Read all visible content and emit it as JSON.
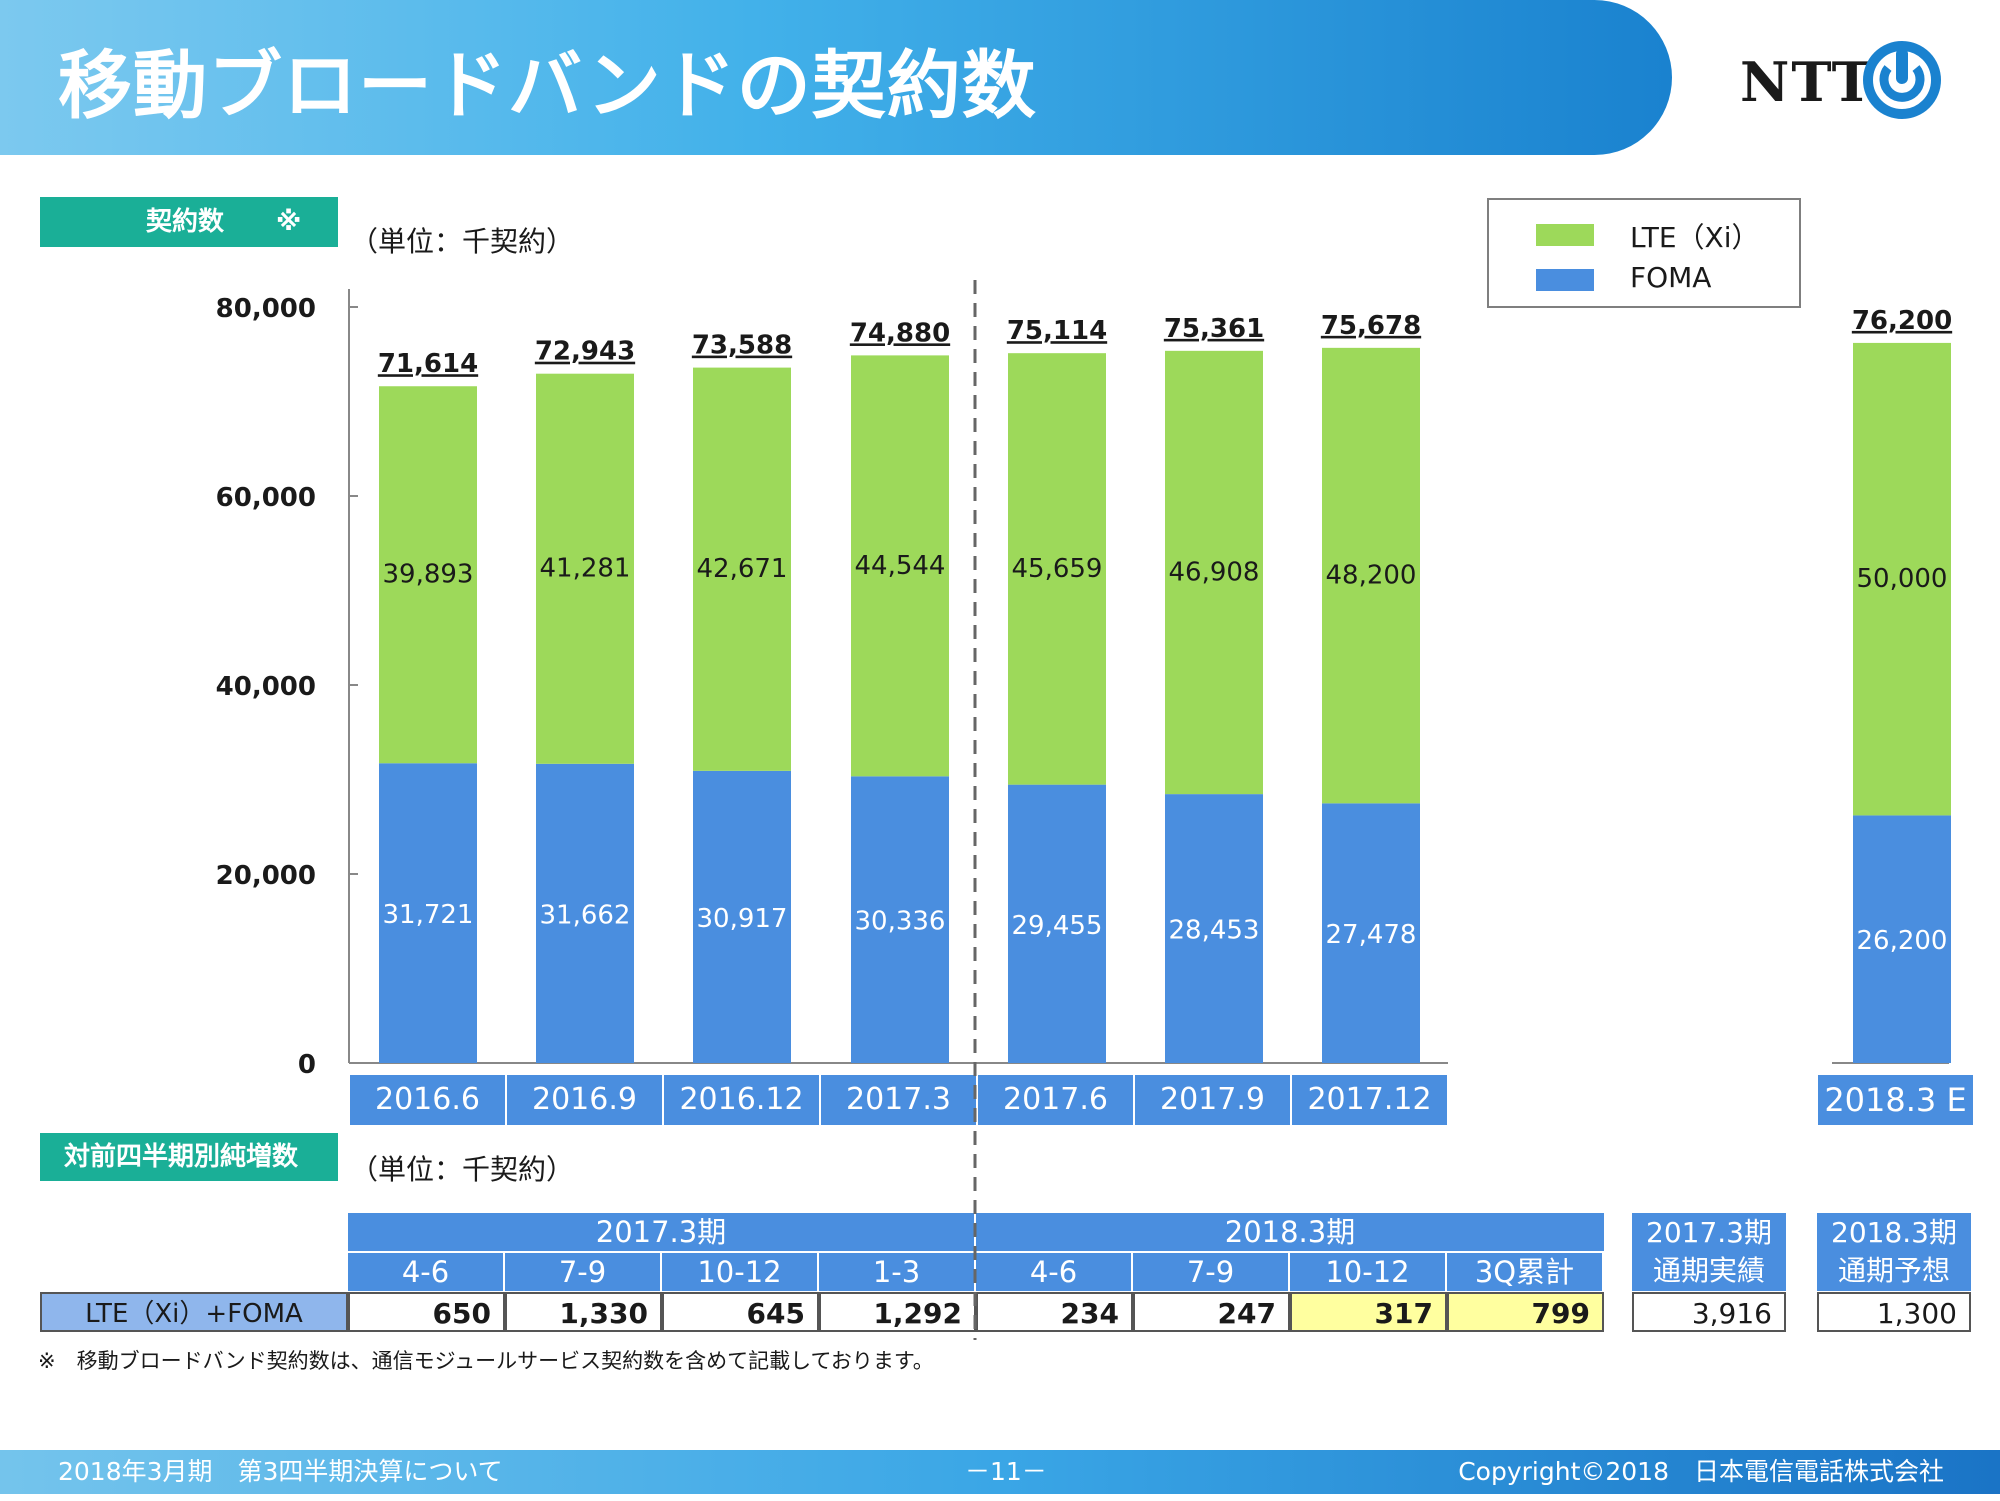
{
  "header": {
    "title": "移動ブロードバンドの契約数",
    "logo_text": "NTT"
  },
  "colors": {
    "lte": "#9dd95a",
    "foma": "#4a8edf",
    "teal": "#1aaf97",
    "highlight": "#ffff9f"
  },
  "sections": {
    "contracts_label": "契約数　　※",
    "contracts_unit": "（単位：千契約）",
    "net_adds_label": "対前四半期別純増数",
    "net_adds_unit": "（単位：千契約）"
  },
  "legend": {
    "lte": "LTE（Xi）",
    "foma": "FOMA"
  },
  "chart_data": {
    "type": "bar",
    "stacked": true,
    "categories": [
      "2016.6",
      "2016.9",
      "2016.12",
      "2017.3",
      "2017.6",
      "2017.9",
      "2017.12",
      "2018.3 E"
    ],
    "series": [
      {
        "name": "FOMA",
        "values": [
          31721,
          31662,
          30917,
          30336,
          29455,
          28453,
          27478,
          26200
        ],
        "labels": [
          "31,721",
          "31,662",
          "30,917",
          "30,336",
          "29,455",
          "28,453",
          "27,478",
          "26,200"
        ]
      },
      {
        "name": "LTE（Xi）",
        "values": [
          39893,
          41281,
          42671,
          44544,
          45659,
          46908,
          48200,
          50000
        ],
        "labels": [
          "39,893",
          "41,281",
          "42,671",
          "44,544",
          "45,659",
          "46,908",
          "48,200",
          "50,000"
        ]
      }
    ],
    "totals": [
      71614,
      72943,
      73588,
      74880,
      75114,
      75361,
      75678,
      76200
    ],
    "total_labels": [
      "71,614",
      "72,943",
      "73,588",
      "74,880",
      "75,114",
      "75,361",
      "75,678",
      "76,200"
    ],
    "yticks": [
      "0",
      "20,000",
      "40,000",
      "60,000",
      "80,000"
    ],
    "ylim": [
      0,
      80000
    ],
    "legend_position": "top-right"
  },
  "table": {
    "period_headers": [
      "2017.3期",
      "2018.3期"
    ],
    "quarter_headers": [
      "4-6",
      "7-9",
      "10-12",
      "1-3",
      "4-6",
      "7-9",
      "10-12",
      "3Q累計"
    ],
    "row_label": "LTE（Xi）+FOMA",
    "values": [
      "650",
      "1,330",
      "645",
      "1,292",
      "234",
      "247",
      "317",
      "799"
    ],
    "summary": [
      {
        "line1": "2017.3期",
        "line2": "通期実績",
        "value": "3,916"
      },
      {
        "line1": "2018.3期",
        "line2": "通期予想",
        "value": "1,300"
      }
    ]
  },
  "footnote": "※　移動ブロードバンド契約数は、通信モジュールサービス契約数を含めて記載しております。",
  "footer": {
    "left": "2018年3月期　第3四半期決算について",
    "center": "－11－",
    "right": "Copyright©2018　日本電信電話株式会社"
  }
}
